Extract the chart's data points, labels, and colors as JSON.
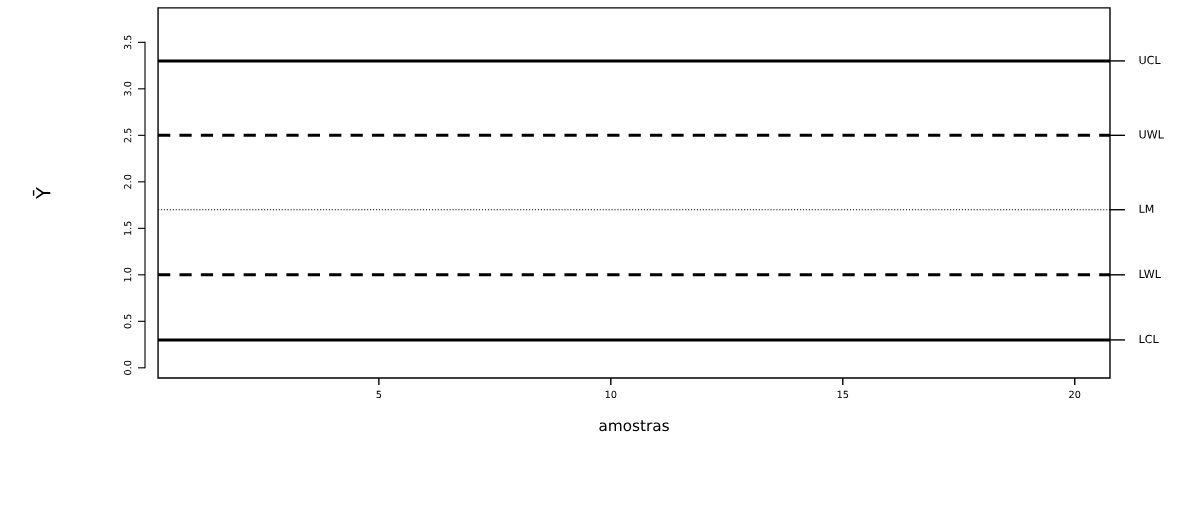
{
  "chart_data": {
    "type": "line",
    "xlabel": "amostras",
    "ylabel": "Ȳ",
    "xlim": [
      0.24,
      20.76
    ],
    "ylim": [
      -0.11,
      3.87
    ],
    "xticks": [
      5,
      10,
      15,
      20
    ],
    "yticks": [
      {
        "value": 0,
        "label": "0.0"
      },
      {
        "value": 0.5,
        "label": "0.5"
      },
      {
        "value": 1,
        "label": "1.0"
      },
      {
        "value": 1.5,
        "label": "1.5"
      },
      {
        "value": 2,
        "label": "2.0"
      },
      {
        "value": 2.5,
        "label": "2.5"
      },
      {
        "value": 3,
        "label": "3.0"
      },
      {
        "value": 3.5,
        "label": "3.5"
      }
    ],
    "ref_lines": [
      {
        "axis": "y",
        "value": 3.3,
        "label": "UCL",
        "color": "#000000",
        "line_style": "solid"
      },
      {
        "axis": "y",
        "value": 2.5,
        "label": "UWL",
        "color": "#000000",
        "line_style": "dashed"
      },
      {
        "axis": "y",
        "value": 1.7,
        "label": "LM",
        "color": "#000000",
        "line_style": "dotted"
      },
      {
        "axis": "y",
        "value": 1.0,
        "label": "LWL",
        "color": "#000000",
        "line_style": "dashed"
      },
      {
        "axis": "y",
        "value": 0.3,
        "label": "LCL",
        "color": "#000000",
        "line_style": "solid"
      }
    ]
  }
}
